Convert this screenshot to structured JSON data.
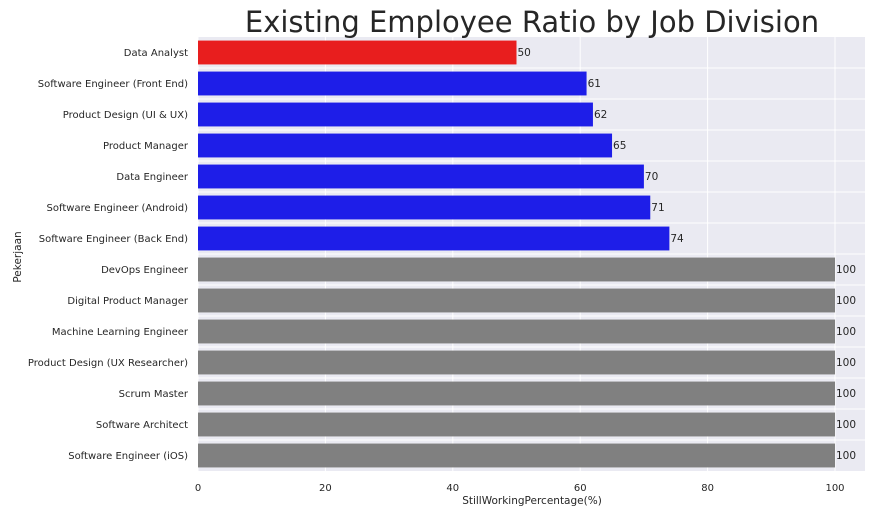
{
  "chart_data": {
    "type": "bar",
    "orientation": "horizontal",
    "title": "Existing Employee Ratio by Job Division",
    "xlabel": "StillWorkingPercentage(%)",
    "ylabel": "Pekerjaan",
    "xlim": [
      0,
      100
    ],
    "xticks": [
      "0",
      "20",
      "40",
      "60",
      "80",
      "100"
    ],
    "grid": true,
    "categories": [
      "Data Analyst",
      "Software Engineer (Front End)",
      "Product Design (UI & UX)",
      "Product Manager",
      "Data Engineer",
      "Software Engineer (Android)",
      "Software Engineer (Back End)",
      "DevOps Engineer",
      "Digital Product Manager",
      "Machine Learning Engineer",
      "Product Design (UX Researcher)",
      "Scrum Master",
      "Software Architect",
      "Software Engineer (iOS)"
    ],
    "values": [
      50,
      61,
      62,
      65,
      70,
      71,
      74,
      100,
      100,
      100,
      100,
      100,
      100,
      100
    ],
    "value_labels": [
      "50",
      "61",
      "62",
      "65",
      "70",
      "71",
      "74",
      "100",
      "100",
      "100",
      "100",
      "100",
      "100",
      "100"
    ],
    "colors": [
      "#e81e1e",
      "#1e1ee8",
      "#1e1ee8",
      "#1e1ee8",
      "#1e1ee8",
      "#1e1ee8",
      "#1e1ee8",
      "#808080",
      "#808080",
      "#808080",
      "#808080",
      "#808080",
      "#808080",
      "#808080"
    ],
    "background_color": "#eaeaf2"
  }
}
